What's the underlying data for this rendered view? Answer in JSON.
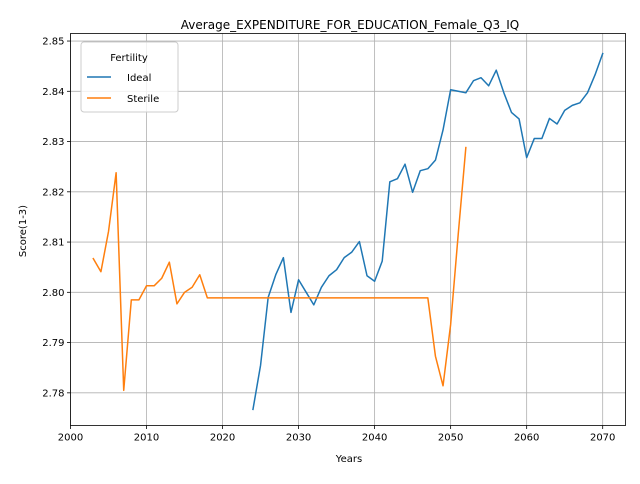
{
  "chart_data": {
    "type": "line",
    "title": "Average_EXPENDITURE_FOR_EDUCATION_Female_Q3_IQ",
    "xlabel": "Years",
    "ylabel": "Score(1-3)",
    "xlim": [
      2000,
      2073
    ],
    "ylim": [
      2.7735,
      2.8515
    ],
    "xticks": [
      2000,
      2010,
      2020,
      2030,
      2040,
      2050,
      2060,
      2070
    ],
    "yticks": [
      2.78,
      2.79,
      2.8,
      2.81,
      2.82,
      2.83,
      2.84,
      2.85
    ],
    "ytick_labels": [
      "2.78",
      "2.79",
      "2.80",
      "2.81",
      "2.82",
      "2.83",
      "2.84",
      "2.85"
    ],
    "grid": true,
    "legend": {
      "title": "Fertility",
      "placement": "top-left"
    },
    "series": [
      {
        "name": "Ideal",
        "color": "#1f77b4",
        "x": [
          2024,
          2025,
          2026,
          2027,
          2028,
          2029,
          2030,
          2031,
          2032,
          2033,
          2034,
          2035,
          2036,
          2037,
          2038,
          2039,
          2040,
          2041,
          2042,
          2043,
          2044,
          2045,
          2046,
          2047,
          2048,
          2049,
          2050,
          2051,
          2052,
          2053,
          2054,
          2055,
          2056,
          2057,
          2058,
          2059,
          2060,
          2061,
          2062,
          2063,
          2064,
          2065,
          2066,
          2067,
          2068,
          2069,
          2070
        ],
        "y": [
          2.7767,
          2.7855,
          2.799,
          2.8035,
          2.8069,
          2.796,
          2.8025,
          2.8,
          2.7975,
          2.801,
          2.8033,
          2.8045,
          2.8069,
          2.808,
          2.8101,
          2.8033,
          2.8022,
          2.8062,
          2.822,
          2.8226,
          2.8255,
          2.8199,
          2.8242,
          2.8246,
          2.8263,
          2.8323,
          2.8403,
          2.84,
          2.8397,
          2.8421,
          2.8427,
          2.8411,
          2.8442,
          2.8397,
          2.8358,
          2.8345,
          2.8268,
          2.8306,
          2.8306,
          2.8346,
          2.8335,
          2.8362,
          2.8372,
          2.8377,
          2.8397,
          2.8433,
          2.8475
        ]
      },
      {
        "name": "Sterile",
        "color": "#ff7f0e",
        "x": [
          2003,
          2004,
          2005,
          2006,
          2007,
          2008,
          2009,
          2010,
          2011,
          2012,
          2013,
          2014,
          2015,
          2016,
          2017,
          2018,
          2019,
          2020,
          2021,
          2022,
          2023,
          2024,
          2025,
          2026,
          2027,
          2028,
          2029,
          2030,
          2031,
          2032,
          2033,
          2034,
          2035,
          2036,
          2037,
          2038,
          2039,
          2040,
          2041,
          2042,
          2043,
          2044,
          2045,
          2046,
          2047,
          2048,
          2049,
          2050,
          2051,
          2052
        ],
        "y": [
          2.8067,
          2.8041,
          2.8121,
          2.8238,
          2.7805,
          2.7985,
          2.7985,
          2.8013,
          2.8013,
          2.8028,
          2.806,
          2.7977,
          2.8,
          2.801,
          2.8035,
          2.7989,
          2.7989,
          2.7989,
          2.7989,
          2.7989,
          2.7989,
          2.7989,
          2.7989,
          2.7989,
          2.7989,
          2.7989,
          2.7989,
          2.7989,
          2.7989,
          2.7989,
          2.7989,
          2.7989,
          2.7989,
          2.7989,
          2.7989,
          2.7989,
          2.7989,
          2.7989,
          2.7989,
          2.7989,
          2.7989,
          2.7989,
          2.7989,
          2.7989,
          2.7989,
          2.7873,
          2.7814,
          2.7936,
          2.8116,
          2.8288
        ]
      }
    ]
  }
}
